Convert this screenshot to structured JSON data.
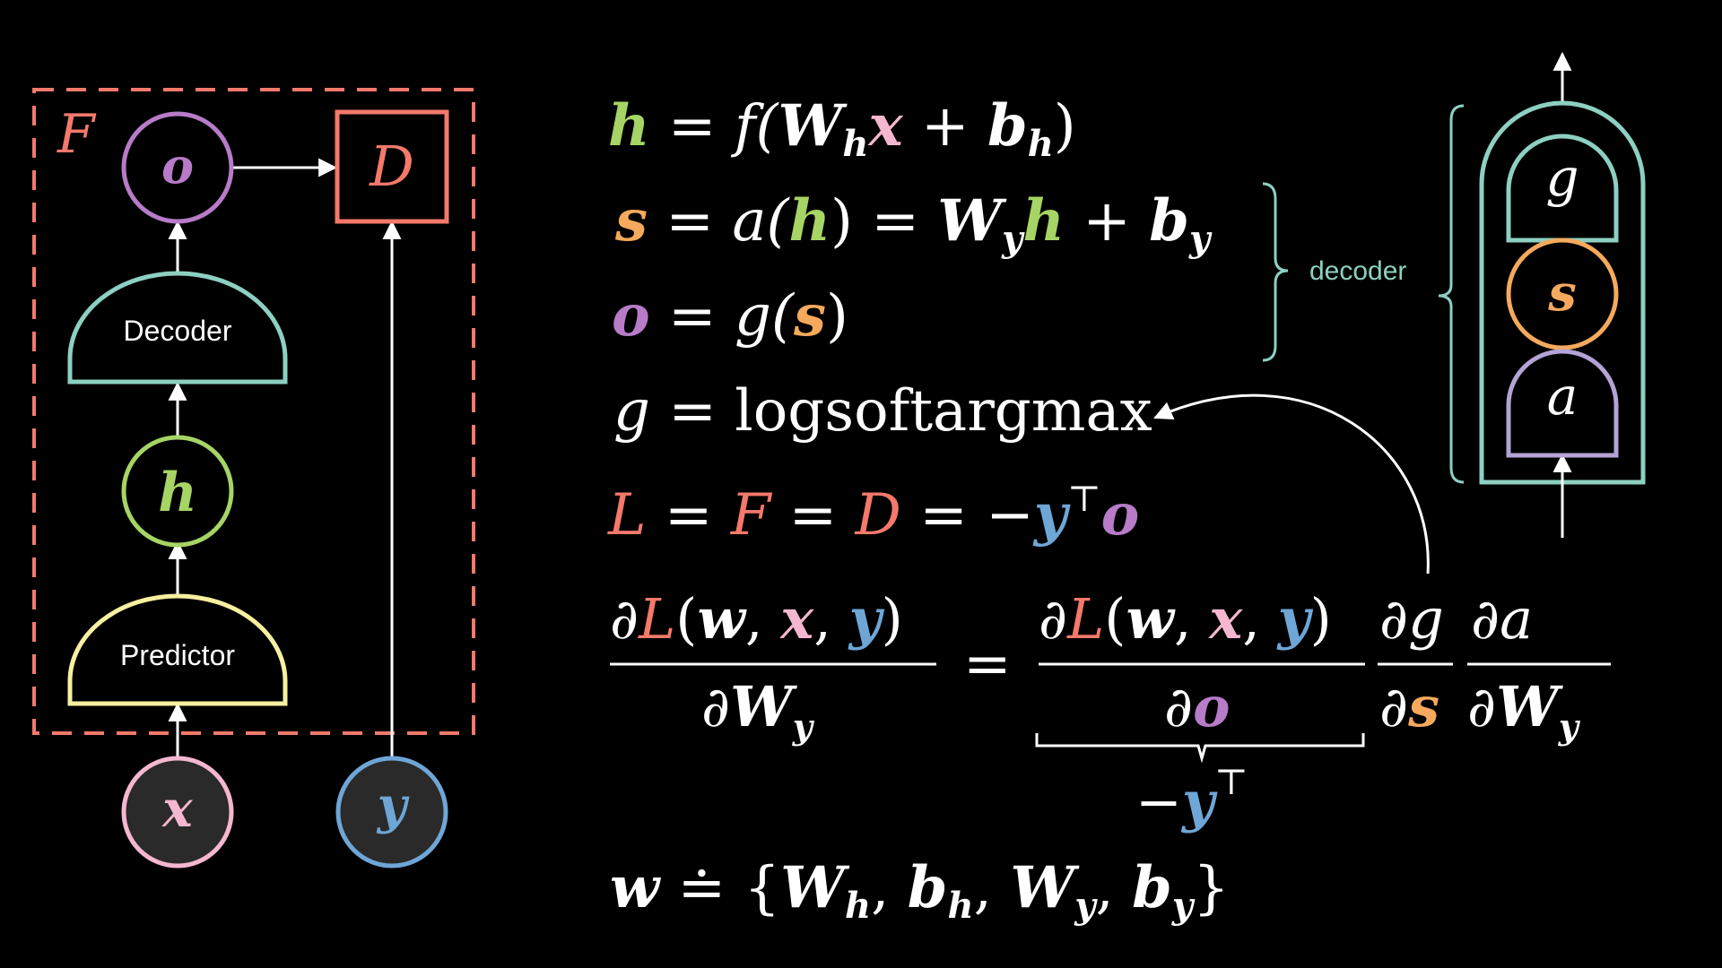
{
  "colors": {
    "background": "#000000",
    "white": "#ffffff",
    "red": "#f4796b",
    "purple": "#b77bc8",
    "green": "#a6d465",
    "orange": "#f5a95d",
    "pink": "#f5b7cf",
    "blue": "#6ea6d6",
    "teal": "#8dd0c2",
    "yellow": "#f6f0a0",
    "lavender": "#b4a3d6"
  },
  "left_diagram": {
    "frame_label": "F",
    "node_o": "o",
    "node_D": "D",
    "decoder_label": "Decoder",
    "node_h": "h",
    "predictor_label": "Predictor",
    "node_x": "x",
    "node_y": "y"
  },
  "equations": {
    "eq1": {
      "lhs": "h",
      "eq": " = ",
      "f": "f(",
      "W": "W",
      "Wsub": "h",
      "x": "x",
      "plus": " + ",
      "b": "b",
      "bsub": "h",
      "close": ")"
    },
    "eq2": {
      "lhs": "s",
      "eq": " = ",
      "a": "a(",
      "h": "h",
      "close": ")",
      "eq2": " = ",
      "W": "W",
      "Wsub": "y",
      "h2": "h",
      "plus": " + ",
      "b": "b",
      "bsub": "y"
    },
    "eq3": {
      "lhs": "o",
      "eq": " = ",
      "g": "g(",
      "s": "s",
      "close": ")"
    },
    "eq4": {
      "lhs": "g",
      "eq": " = ",
      "rhs": "logsoftargmax"
    },
    "eq5": {
      "L": "L",
      "eq1": " = ",
      "F": "F",
      "eq2": " = ",
      "D": "D",
      "eq3": " = ",
      "minus": "−",
      "y": "y",
      "T": "⊤",
      "o": "o"
    },
    "eq6": {
      "d": "∂",
      "L": "L",
      "open": "(",
      "w": "w",
      "comma": ", ",
      "x": "x",
      "y": "y",
      "close": ")",
      "W": "W",
      "Wsub": "y",
      "equals": "=",
      "o": "o",
      "g": "g",
      "s": "s",
      "a": "a",
      "under_minus": "−",
      "under_y": "y",
      "under_T": "⊤"
    },
    "eq7": {
      "w": "w",
      "deq": " ≐ ",
      "open": "{",
      "W1": "W",
      "W1sub": "h",
      "c": ", ",
      "b1": "b",
      "b1sub": "h",
      "W2": "W",
      "W2sub": "y",
      "b2": "b",
      "b2sub": "y",
      "close": "}"
    }
  },
  "decoder_brace_label": "decoder",
  "right_diagram": {
    "top": "g",
    "middle": "s",
    "bottom": "a"
  }
}
